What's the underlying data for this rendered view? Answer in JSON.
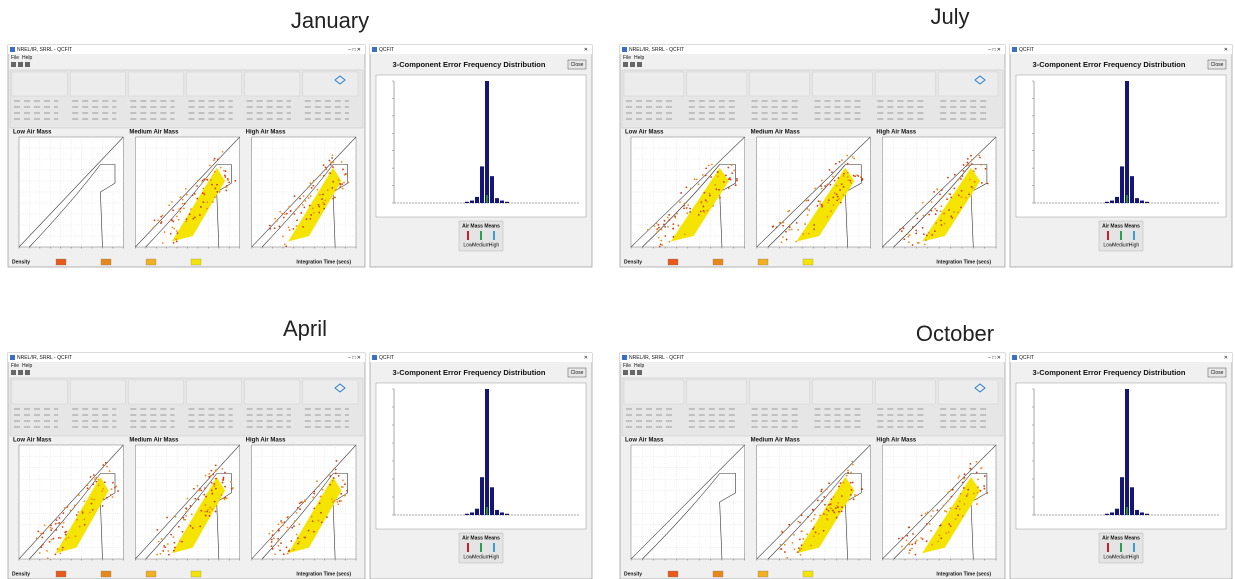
{
  "panels": [
    {
      "title": "January",
      "window_title": "NREL/IR, SRRL - QCFIT",
      "menu": [
        "File",
        "Help"
      ],
      "plot_titles": [
        "Low Air Mass",
        "Medium Air Mass",
        "High Air Mass"
      ],
      "density_label": "Density",
      "integration_label": "Integration Time (secs)",
      "dialog_title": "QCFIT",
      "dialog_heading": "3-Component Error Frequency Distribution",
      "close": "Close",
      "means_title": "Air Mass Means",
      "means_labels": [
        "Low",
        "Medium",
        "High"
      ]
    },
    {
      "title": "July",
      "window_title": "NREL/IR, SRRL - QCFIT",
      "menu": [
        "File",
        "Help"
      ],
      "plot_titles": [
        "Low Air Mass",
        "Medium Air Mass",
        "High Air Mass"
      ],
      "density_label": "Density",
      "integration_label": "Integration Time (secs)",
      "dialog_title": "QCFIT",
      "dialog_heading": "3-Component Error Frequency Distribution",
      "close": "Close",
      "means_title": "Air Mass Means",
      "means_labels": [
        "Low",
        "Medium",
        "High"
      ]
    },
    {
      "title": "April",
      "window_title": "NREL/IR, SRRL - QCFIT",
      "menu": [
        "File",
        "Help"
      ],
      "plot_titles": [
        "Low Air Mass",
        "Medium Air Mass",
        "High Air Mass"
      ],
      "density_label": "Density",
      "integration_label": "Integration Time (secs)",
      "dialog_title": "QCFIT",
      "dialog_heading": "3-Component Error Frequency Distribution",
      "close": "Close",
      "means_title": "Air Mass Means",
      "means_labels": [
        "Low",
        "Medium",
        "High"
      ]
    },
    {
      "title": "October",
      "window_title": "NREL/IR, SRRL - QCFIT",
      "menu": [
        "File",
        "Help"
      ],
      "plot_titles": [
        "Low Air Mass",
        "Medium Air Mass",
        "High Air Mass"
      ],
      "density_label": "Density",
      "integration_label": "Integration Time (secs)",
      "dialog_title": "QCFIT",
      "dialog_heading": "3-Component Error Frequency Distribution",
      "close": "Close",
      "means_title": "Air Mass Means",
      "means_labels": [
        "Low",
        "Medium",
        "High"
      ]
    }
  ]
}
